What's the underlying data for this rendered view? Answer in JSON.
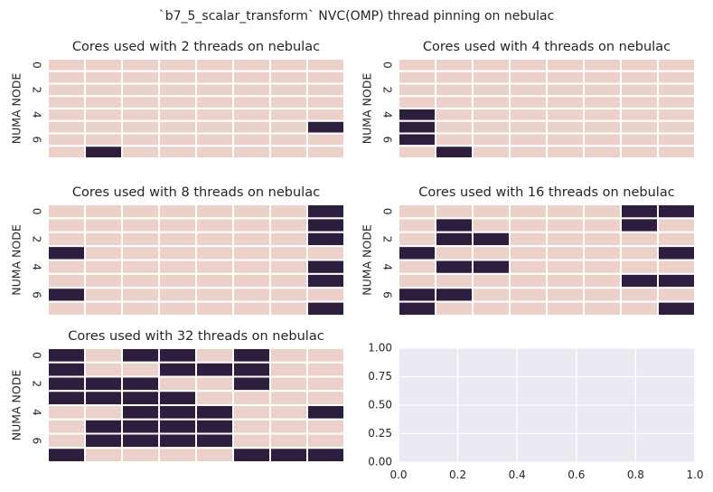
{
  "suptitle": "`b7_5_scalar_transform` NVC(OMP) thread pinning on nebulac",
  "colors": {
    "unused": "#ecd1cb",
    "used": "#2d1e3e",
    "grid_separator": "#ffffff",
    "empty_axes_bg": "#eaeaf2",
    "text": "#262626"
  },
  "chart_data": [
    {
      "type": "heatmap",
      "title": "Cores used with 2 threads on nebulac",
      "ylabel": "NUMA NODE",
      "yticks": [
        "0",
        "2",
        "4",
        "6"
      ],
      "rows": 8,
      "cols": 8,
      "values": [
        [
          0,
          0,
          0,
          0,
          0,
          0,
          0,
          0
        ],
        [
          0,
          0,
          0,
          0,
          0,
          0,
          0,
          0
        ],
        [
          0,
          0,
          0,
          0,
          0,
          0,
          0,
          0
        ],
        [
          0,
          0,
          0,
          0,
          0,
          0,
          0,
          0
        ],
        [
          0,
          0,
          0,
          0,
          0,
          0,
          0,
          0
        ],
        [
          0,
          0,
          0,
          0,
          0,
          0,
          0,
          1
        ],
        [
          0,
          0,
          0,
          0,
          0,
          0,
          0,
          0
        ],
        [
          0,
          1,
          0,
          0,
          0,
          0,
          0,
          0
        ]
      ]
    },
    {
      "type": "heatmap",
      "title": "Cores used with 4 threads on nebulac",
      "ylabel": "NUMA NODE",
      "yticks": [
        "0",
        "2",
        "4",
        "6"
      ],
      "rows": 8,
      "cols": 8,
      "values": [
        [
          0,
          0,
          0,
          0,
          0,
          0,
          0,
          0
        ],
        [
          0,
          0,
          0,
          0,
          0,
          0,
          0,
          0
        ],
        [
          0,
          0,
          0,
          0,
          0,
          0,
          0,
          0
        ],
        [
          0,
          0,
          0,
          0,
          0,
          0,
          0,
          0
        ],
        [
          1,
          0,
          0,
          0,
          0,
          0,
          0,
          0
        ],
        [
          1,
          0,
          0,
          0,
          0,
          0,
          0,
          0
        ],
        [
          1,
          0,
          0,
          0,
          0,
          0,
          0,
          0
        ],
        [
          0,
          1,
          0,
          0,
          0,
          0,
          0,
          0
        ]
      ]
    },
    {
      "type": "heatmap",
      "title": "Cores used with 8 threads on nebulac",
      "ylabel": "NUMA NODE",
      "yticks": [
        "0",
        "2",
        "4",
        "6"
      ],
      "rows": 8,
      "cols": 8,
      "values": [
        [
          0,
          0,
          0,
          0,
          0,
          0,
          0,
          1
        ],
        [
          0,
          0,
          0,
          0,
          0,
          0,
          0,
          1
        ],
        [
          0,
          0,
          0,
          0,
          0,
          0,
          0,
          1
        ],
        [
          1,
          0,
          0,
          0,
          0,
          0,
          0,
          0
        ],
        [
          0,
          0,
          0,
          0,
          0,
          0,
          0,
          1
        ],
        [
          0,
          0,
          0,
          0,
          0,
          0,
          0,
          1
        ],
        [
          1,
          0,
          0,
          0,
          0,
          0,
          0,
          0
        ],
        [
          0,
          0,
          0,
          0,
          0,
          0,
          0,
          1
        ]
      ]
    },
    {
      "type": "heatmap",
      "title": "Cores used with 16 threads on nebulac",
      "ylabel": "NUMA NODE",
      "yticks": [
        "0",
        "2",
        "4",
        "6"
      ],
      "rows": 8,
      "cols": 8,
      "values": [
        [
          0,
          0,
          0,
          0,
          0,
          0,
          1,
          1
        ],
        [
          0,
          1,
          0,
          0,
          0,
          0,
          1,
          0
        ],
        [
          0,
          1,
          1,
          0,
          0,
          0,
          0,
          0
        ],
        [
          1,
          0,
          0,
          0,
          0,
          0,
          0,
          1
        ],
        [
          0,
          1,
          1,
          0,
          0,
          0,
          0,
          0
        ],
        [
          0,
          0,
          0,
          0,
          0,
          0,
          1,
          1
        ],
        [
          1,
          1,
          0,
          0,
          0,
          0,
          0,
          0
        ],
        [
          1,
          0,
          0,
          0,
          0,
          0,
          0,
          1
        ]
      ]
    },
    {
      "type": "heatmap",
      "title": "Cores used with 32 threads on nebulac",
      "ylabel": "NUMA NODE",
      "yticks": [
        "0",
        "2",
        "4",
        "6"
      ],
      "rows": 8,
      "cols": 8,
      "values": [
        [
          1,
          0,
          1,
          1,
          0,
          1,
          0,
          0
        ],
        [
          1,
          0,
          0,
          1,
          1,
          1,
          0,
          0
        ],
        [
          1,
          1,
          1,
          0,
          0,
          1,
          0,
          0
        ],
        [
          1,
          1,
          1,
          1,
          0,
          0,
          0,
          0
        ],
        [
          0,
          0,
          1,
          1,
          1,
          0,
          0,
          1
        ],
        [
          0,
          1,
          1,
          1,
          1,
          0,
          0,
          0
        ],
        [
          0,
          1,
          1,
          1,
          1,
          0,
          0,
          0
        ],
        [
          1,
          0,
          0,
          0,
          0,
          1,
          1,
          1
        ]
      ]
    },
    {
      "type": "empty",
      "title": "",
      "xlim": [
        0,
        1
      ],
      "ylim": [
        0,
        1
      ],
      "xticks": [
        "0.0",
        "0.2",
        "0.4",
        "0.6",
        "0.8",
        "1.0"
      ],
      "yticks": [
        "0.00",
        "0.25",
        "0.50",
        "0.75",
        "1.00"
      ],
      "grid": true
    }
  ]
}
